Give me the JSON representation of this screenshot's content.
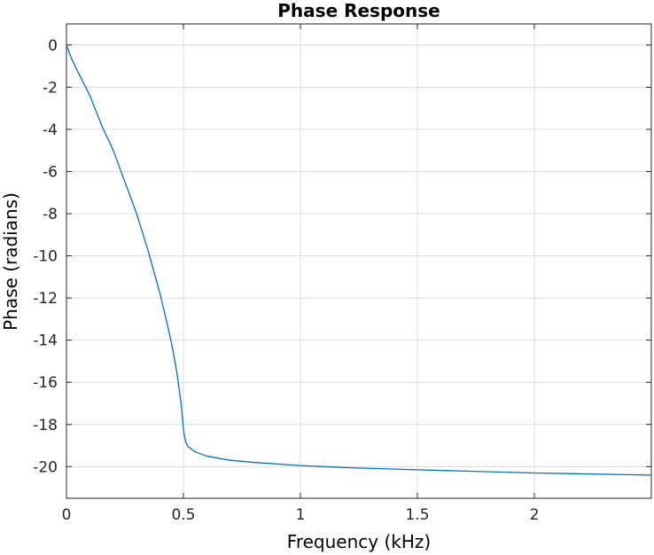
{
  "chart_data": {
    "type": "line",
    "title": "Phase Response",
    "xlabel": "Frequency (kHz)",
    "ylabel": "Phase (radians)",
    "xlim": [
      0,
      2.5
    ],
    "ylim": [
      -21.5,
      1
    ],
    "xticks": [
      0,
      0.5,
      1,
      1.5,
      2
    ],
    "xtick_labels": [
      "0",
      "0.5",
      "1",
      "1.5",
      "2"
    ],
    "yticks": [
      0,
      -2,
      -4,
      -6,
      -8,
      -10,
      -12,
      -14,
      -16,
      -18,
      -20
    ],
    "ytick_labels": [
      "0",
      "-2",
      "-4",
      "-6",
      "-8",
      "-10",
      "-12",
      "-14",
      "-16",
      "-18",
      "-20"
    ],
    "grid": true,
    "series": [
      {
        "color": "#0072BD",
        "x": [
          0,
          0.02,
          0.05,
          0.1,
          0.15,
          0.2,
          0.25,
          0.3,
          0.35,
          0.4,
          0.43,
          0.45,
          0.47,
          0.48,
          0.49,
          0.495,
          0.5,
          0.505,
          0.51,
          0.52,
          0.55,
          0.6,
          0.7,
          0.8,
          1.0,
          1.2,
          1.5,
          2.0,
          2.5
        ],
        "y": [
          0,
          -0.6,
          -1.3,
          -2.4,
          -3.8,
          -5.0,
          -6.5,
          -8.0,
          -9.8,
          -11.8,
          -13.2,
          -14.2,
          -15.4,
          -16.2,
          -17.0,
          -17.6,
          -18.2,
          -18.6,
          -18.85,
          -19.05,
          -19.3,
          -19.5,
          -19.7,
          -19.8,
          -19.95,
          -20.05,
          -20.15,
          -20.3,
          -20.4
        ]
      }
    ]
  }
}
